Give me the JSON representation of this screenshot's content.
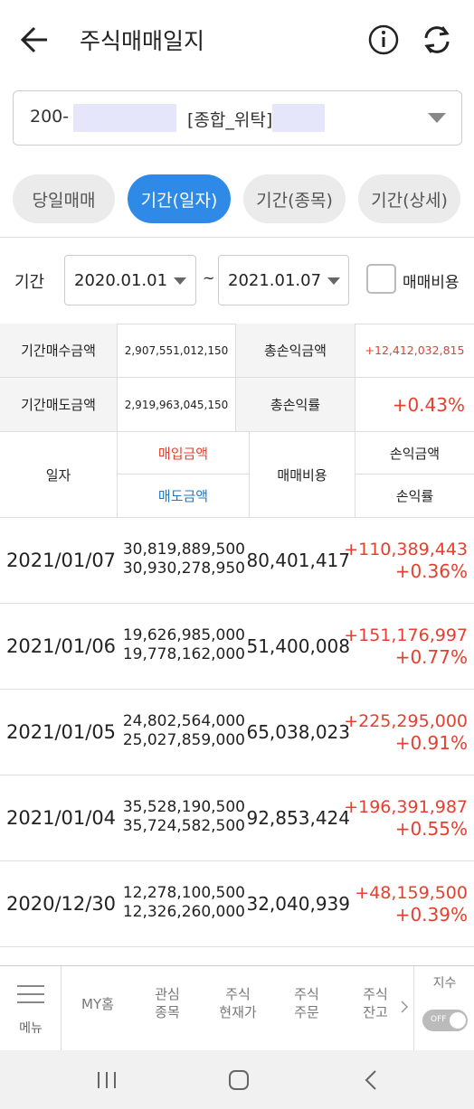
{
  "header": {
    "title": "주식매매일지"
  },
  "account": {
    "prefix": "200-",
    "type": "[종합_위탁]"
  },
  "tabs": [
    "당일매매",
    "기간(일자)",
    "기간(종목)",
    "기간(상세)"
  ],
  "filter": {
    "label": "기간",
    "start": "2020.01.01",
    "separator": "~",
    "end": "2021.01.07",
    "checkbox": "매매비용"
  },
  "summary": {
    "rows": [
      [
        "기간매수금액",
        "2,907,551,012,150",
        "총손익금액",
        "+12,412,032,815"
      ],
      [
        "기간매도금액",
        "2,919,963,045,150",
        "총손익률",
        "+0.43%"
      ]
    ]
  },
  "table": {
    "headers": {
      "date": "일자",
      "buy": "매입금액",
      "sell": "매도금액",
      "cost": "매매비용",
      "pnl": "손익금액",
      "rate": "손익률"
    },
    "rows": [
      [
        "2021/01/07",
        "30,819,889,500",
        "30,930,278,950",
        "80,401,417",
        "+110,389,443",
        "+0.36%"
      ],
      [
        "2021/01/06",
        "19,626,985,000",
        "19,778,162,000",
        "51,400,008",
        "+151,176,997",
        "+0.77%"
      ],
      [
        "2021/01/05",
        "24,802,564,000",
        "25,027,859,000",
        "65,038,023",
        "+225,295,000",
        "+0.91%"
      ],
      [
        "2021/01/04",
        "35,528,190,500",
        "35,724,582,500",
        "92,853,424",
        "+196,391,987",
        "+0.55%"
      ],
      [
        "2020/12/30",
        "12,278,100,500",
        "12,326,260,000",
        "32,040,939",
        "+48,159,500",
        "+0.39%"
      ]
    ]
  },
  "bottom_nav": {
    "items": [
      [
        "메뉴"
      ],
      [
        "MY홈"
      ],
      [
        "관심",
        "종목"
      ],
      [
        "주식",
        "현재가"
      ],
      [
        "주식",
        "주문"
      ],
      [
        "주식",
        "잔고"
      ]
    ],
    "index_label": "지수",
    "toggle": "OFF"
  }
}
